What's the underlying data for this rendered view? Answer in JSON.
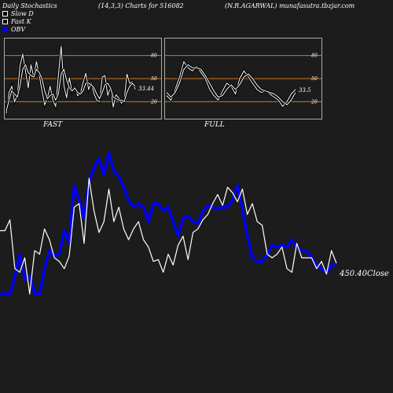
{
  "header": {
    "title": "Daily Stochastics",
    "params": "(14,3,3) Charts for 516082",
    "symbol": "(N.R.AGARWAL) munafasutra.tbzjar.com"
  },
  "legend": {
    "slow_d": "Slow  D",
    "fast_k": "Fast K",
    "obv": "OBV"
  },
  "colors": {
    "background": "#1c1c1c",
    "obv": "#0000ff",
    "price": "#ffffff",
    "level_line": "#cc7722",
    "panel_border": "#aaaaaa"
  },
  "chart_data": [
    {
      "type": "line",
      "name_label": "FAST",
      "levels": [
        "80",
        "50",
        "20"
      ],
      "level_values": [
        80,
        50,
        20
      ],
      "ylim": [
        0,
        100
      ],
      "last_value_label": "33.44",
      "series": [
        {
          "name": "Fast K",
          "values": [
            5,
            32,
            40,
            20,
            28,
            66,
            82,
            60,
            38,
            68,
            52,
            72,
            55,
            34,
            16,
            25,
            40,
            22,
            14,
            54,
            92,
            41,
            25,
            51,
            33,
            40,
            28,
            30,
            45,
            57,
            36,
            44,
            30,
            22,
            20,
            52,
            54,
            28,
            39,
            13,
            29,
            25,
            18,
            22,
            56,
            44,
            46,
            36
          ]
        },
        {
          "name": "Slow  D",
          "values": [
            8,
            22,
            34,
            30,
            26,
            40,
            62,
            68,
            58,
            54,
            52,
            62,
            58,
            50,
            34,
            24,
            28,
            30,
            22,
            30,
            56,
            62,
            48,
            38,
            34,
            38,
            32,
            30,
            34,
            44,
            44,
            42,
            38,
            30,
            24,
            32,
            42,
            44,
            38,
            26,
            24,
            22,
            22,
            20,
            32,
            40,
            44,
            40
          ]
        }
      ]
    },
    {
      "type": "line",
      "name_label": "FULL",
      "levels": [
        "80",
        "50",
        "20"
      ],
      "level_values": [
        80,
        50,
        20
      ],
      "ylim": [
        0,
        100
      ],
      "last_value_label": "33.5",
      "series": [
        {
          "name": "Fast K",
          "values": [
            28,
            22,
            36,
            52,
            72,
            64,
            60,
            66,
            58,
            50,
            36,
            28,
            22,
            34,
            44,
            40,
            30,
            50,
            60,
            52,
            44,
            36,
            32,
            34,
            30,
            26,
            22,
            14,
            20,
            30,
            36
          ]
        },
        {
          "name": "Slow  D",
          "values": [
            32,
            26,
            32,
            44,
            62,
            68,
            64,
            64,
            62,
            54,
            44,
            34,
            26,
            28,
            36,
            42,
            36,
            42,
            52,
            56,
            50,
            42,
            36,
            34,
            32,
            30,
            26,
            20,
            16,
            22,
            32
          ]
        }
      ]
    },
    {
      "type": "line",
      "ylim": [
        0,
        100
      ],
      "last_value_label": "450.40Close",
      "series": [
        {
          "name": "Close",
          "values": [
            55,
            55,
            61,
            34,
            32,
            40,
            20,
            44,
            42,
            56,
            50,
            40,
            38,
            34,
            41,
            68,
            70,
            48,
            84,
            66,
            54,
            60,
            78,
            60,
            68,
            56,
            50,
            56,
            60,
            50,
            46,
            38,
            39,
            32,
            42,
            36,
            47,
            52,
            39,
            54,
            56,
            61,
            64,
            70,
            75,
            69,
            79,
            76,
            71,
            78,
            64,
            70,
            60,
            58,
            42,
            40,
            42,
            46,
            34,
            32,
            48,
            40,
            40,
            40,
            34,
            38,
            31,
            44,
            37
          ]
        },
        {
          "name": "OBV",
          "values": [
            20,
            20,
            20,
            30,
            42,
            28,
            30,
            20,
            20,
            34,
            44,
            41,
            42,
            55,
            48,
            80,
            72,
            62,
            82,
            90,
            95,
            86,
            98,
            88,
            85,
            79,
            72,
            68,
            70,
            68,
            60,
            70,
            70,
            66,
            68,
            60,
            52,
            62,
            63,
            60,
            59,
            66,
            69,
            68,
            67,
            68,
            68,
            72,
            80,
            67,
            52,
            40,
            38,
            38,
            42,
            47,
            46,
            47,
            46,
            50,
            46,
            44,
            44,
            40,
            36,
            34,
            32,
            36,
            36
          ]
        }
      ]
    }
  ]
}
